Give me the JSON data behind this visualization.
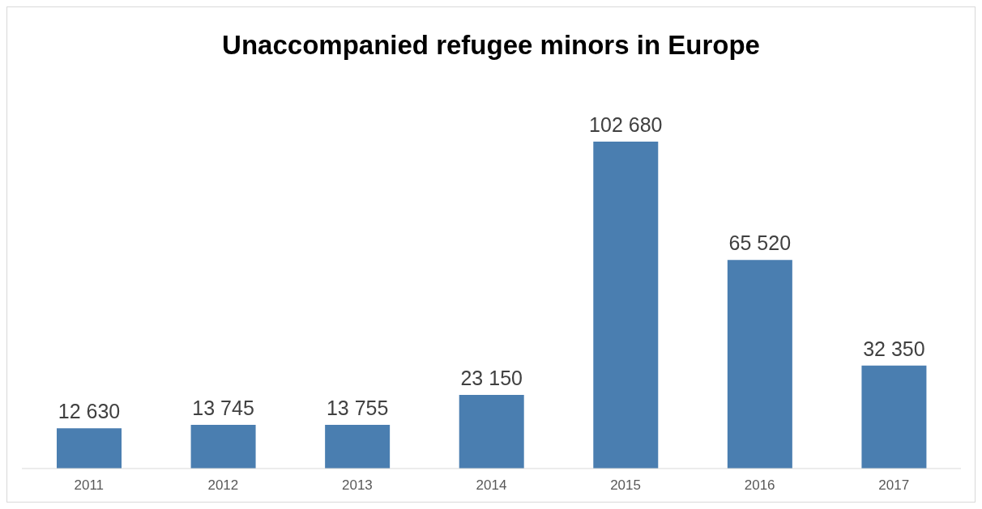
{
  "chart_data": {
    "type": "bar",
    "title": "Unaccompanied refugee minors in Europe",
    "categories": [
      "2011",
      "2012",
      "2013",
      "2014",
      "2015",
      "2016",
      "2017"
    ],
    "values": [
      12630,
      13745,
      13755,
      23150,
      102680,
      65520,
      32350
    ],
    "value_labels": [
      "12 630",
      "13 745",
      "13 755",
      "23 150",
      "102 680",
      "65 520",
      "32 350"
    ],
    "color": "#4a7eb0",
    "grid": false,
    "legend": false
  }
}
